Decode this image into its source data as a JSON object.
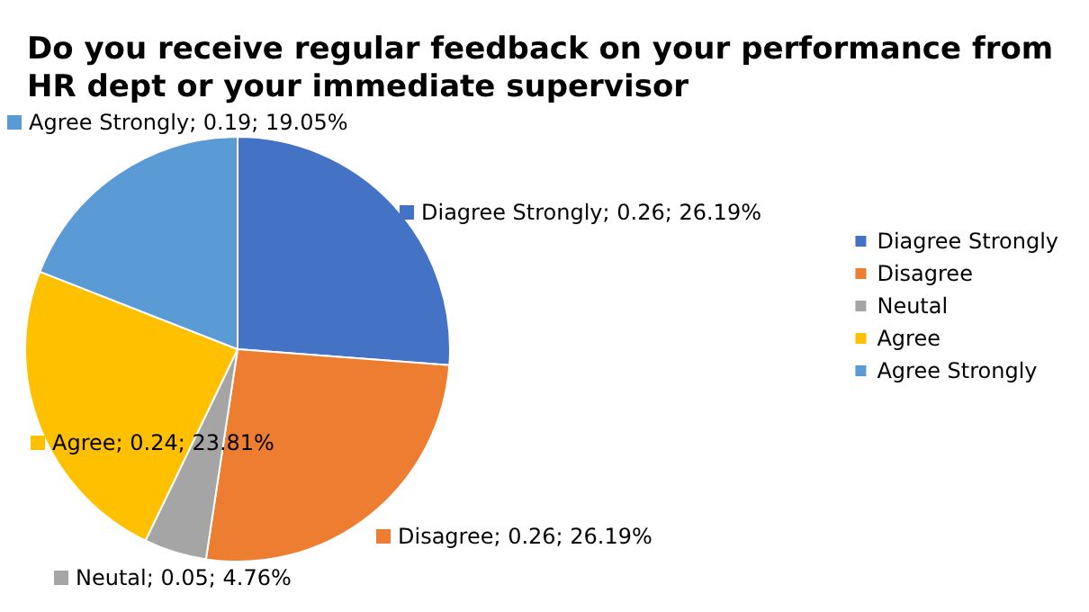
{
  "chart_data": {
    "type": "pie",
    "title": "Do you receive regular feedback on your performance from HR dept or your immediate supervisor",
    "categories": [
      "Diagree Strongly",
      "Disagree",
      "Neutal",
      "Agree",
      "Agree Strongly"
    ],
    "values": [
      26.19,
      26.19,
      4.76,
      23.81,
      19.05
    ],
    "value_labels": [
      "Diagree Strongly; 0.26; 26.19%",
      "Disagree; 0.26; 26.19%",
      "Neutal; 0.05; 4.76%",
      "Agree; 0.24; 23.81%",
      "Agree Strongly; 0.19; 19.05%"
    ],
    "colors": [
      "#4472c4",
      "#ed7d31",
      "#a5a5a5",
      "#ffc000",
      "#5b9bd5"
    ],
    "legend": "right"
  }
}
